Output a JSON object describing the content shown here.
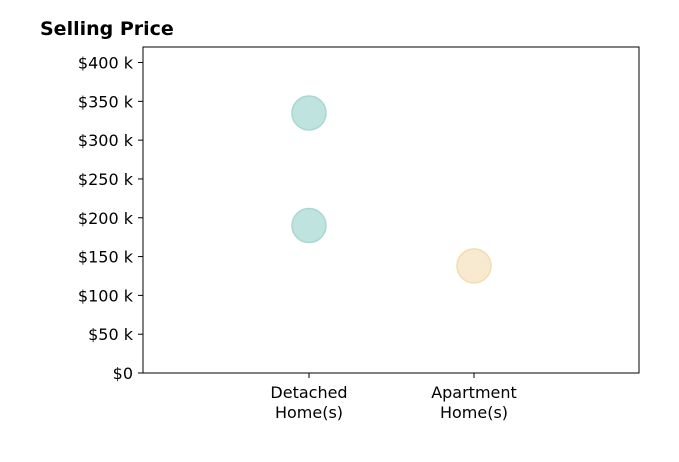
{
  "chart_data": {
    "type": "scatter",
    "title": "Selling Price",
    "xlabel": "",
    "ylabel": "",
    "categories": [
      [
        "Detached",
        "Home(s)"
      ],
      [
        "Apartment",
        "Home(s)"
      ]
    ],
    "ylim": [
      0,
      420000
    ],
    "yticks": [
      0,
      50000,
      100000,
      150000,
      200000,
      250000,
      300000,
      350000,
      400000
    ],
    "ytick_labels": [
      "$0",
      "$50 k",
      "$100 k",
      "$150 k",
      "$200 k",
      "$250 k",
      "$300 k",
      "$350 k",
      "$400 k"
    ],
    "grid": false,
    "points": [
      {
        "category": 0,
        "value": 335000,
        "color": "#bfe3df",
        "edge": "#a8d8d2"
      },
      {
        "category": 0,
        "value": 190000,
        "color": "#bfe3df",
        "edge": "#a8d8d2"
      },
      {
        "category": 1,
        "value": 138000,
        "color": "#f8ead0",
        "edge": "#f2dcb2"
      }
    ]
  }
}
